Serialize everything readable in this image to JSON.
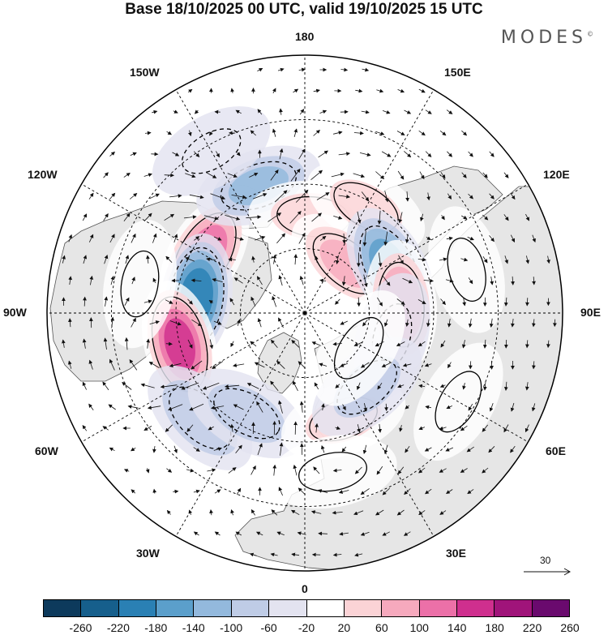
{
  "title": "Base 18/10/2025 00 UTC, valid 19/10/2025 15 UTC",
  "brand": "MODES",
  "brand_mark": "©",
  "longitude_labels": {
    "top": "180",
    "bottom": "0",
    "left": "90W",
    "right": "90E",
    "upper_left_1": "150W",
    "upper_left_2": "120W",
    "lower_left_1": "60W",
    "lower_left_2": "30W",
    "upper_right_1": "150E",
    "upper_right_2": "120E",
    "lower_right_1": "60E",
    "lower_right_2": "30E"
  },
  "reference_vector": {
    "label": "30"
  },
  "colorbar": {
    "ticks": [
      "-260",
      "-220",
      "-180",
      "-140",
      "-100",
      "-60",
      "-20",
      "20",
      "60",
      "100",
      "140",
      "180",
      "220",
      "260"
    ],
    "colors": [
      "#0d3a5c",
      "#165f8c",
      "#2a80b4",
      "#5b9fcb",
      "#93b9dd",
      "#bfcce6",
      "#e3e3f0",
      "#ffffff",
      "#fbd3d6",
      "#f6a9bd",
      "#ec70a8",
      "#cf2f8e",
      "#a0147a",
      "#6a0a6e"
    ]
  },
  "anomalies": [
    {
      "lon": -120,
      "colat": 36,
      "value": 170
    },
    {
      "lon": -98,
      "colat": 34,
      "value": -210
    },
    {
      "lon": -76,
      "colat": 40,
      "value": 190
    },
    {
      "lon": -45,
      "colat": 46,
      "value": -90
    },
    {
      "lon": -30,
      "colat": 36,
      "value": -70
    },
    {
      "lon": -160,
      "colat": 42,
      "value": -100
    },
    {
      "lon": 175,
      "colat": 30,
      "value": 70
    },
    {
      "lon": 150,
      "colat": 38,
      "value": 60
    },
    {
      "lon": 140,
      "colat": 20,
      "value": 100
    },
    {
      "lon": 118,
      "colat": 30,
      "value": -160
    },
    {
      "lon": 95,
      "colat": 30,
      "value": 130
    },
    {
      "lon": 75,
      "colat": 28,
      "value": -40
    },
    {
      "lon": 20,
      "colat": 35,
      "value": 60
    },
    {
      "lon": 40,
      "colat": 30,
      "value": -60
    },
    {
      "lon": 57,
      "colat": 20,
      "value": 50
    },
    {
      "lon": 10,
      "colat": 50,
      "value": 50
    },
    {
      "lon": 105,
      "colat": 52,
      "value": 30
    },
    {
      "lon": -100,
      "colat": 52,
      "value": 40
    },
    {
      "lon": -150,
      "colat": 58,
      "value": -30
    },
    {
      "lon": 60,
      "colat": 55,
      "value": 40
    }
  ],
  "palette": {
    "land": "#e6e6e6",
    "coast": "#555555",
    "arrow": "#111111",
    "graticule": "#000000"
  }
}
